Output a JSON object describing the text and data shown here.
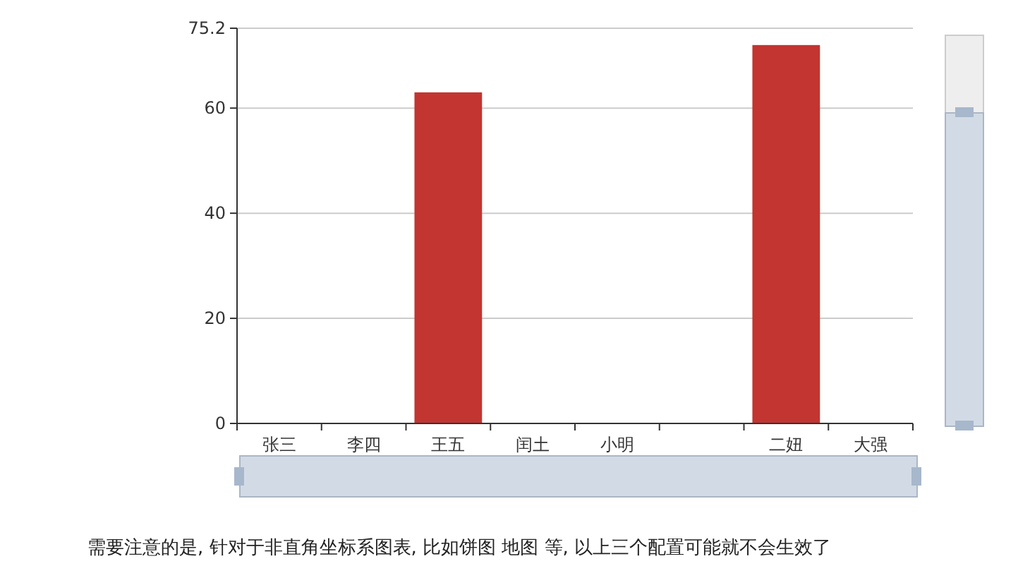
{
  "chart_data": {
    "type": "bar",
    "categories": [
      "张三",
      "李四",
      "王五",
      "闰土",
      "小明",
      null,
      "二妞",
      "大强"
    ],
    "series": [
      {
        "color": "#c23531",
        "values": [
          null,
          null,
          63,
          null,
          null,
          null,
          72,
          null
        ]
      }
    ],
    "ylim": [
      0,
      75.2
    ],
    "yticks": [
      0,
      20,
      40,
      60,
      75.2
    ],
    "grid": "y",
    "annotations": [
      "需要注意的是, 针对于非直角坐标系图表, 比如饼图 地图 等, 以上三个配置可能就不会生效了"
    ]
  }
}
